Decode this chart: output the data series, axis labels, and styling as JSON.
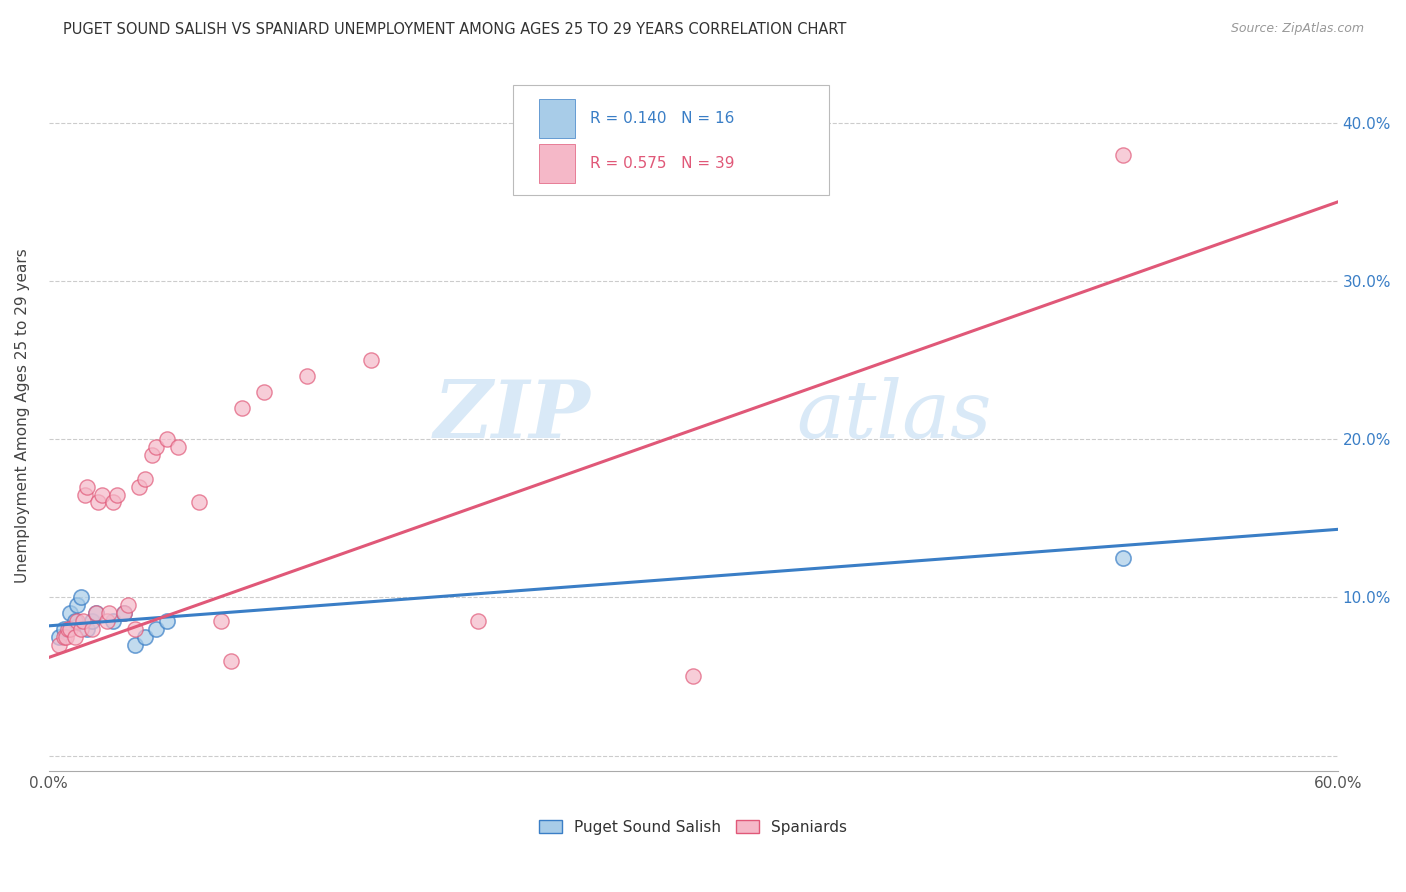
{
  "title": "PUGET SOUND SALISH VS SPANIARD UNEMPLOYMENT AMONG AGES 25 TO 29 YEARS CORRELATION CHART",
  "source": "Source: ZipAtlas.com",
  "ylabel": "Unemployment Among Ages 25 to 29 years",
  "xlim": [
    0.0,
    0.6
  ],
  "ylim": [
    -0.01,
    0.44
  ],
  "xticks": [
    0.0,
    0.1,
    0.2,
    0.3,
    0.4,
    0.5,
    0.6
  ],
  "xticklabels": [
    "0.0%",
    "",
    "",
    "",
    "",
    "",
    "60.0%"
  ],
  "yticks": [
    0.0,
    0.1,
    0.2,
    0.3,
    0.4
  ],
  "yticklabels": [
    "",
    "10.0%",
    "20.0%",
    "30.0%",
    "40.0%"
  ],
  "blue_scatter_x": [
    0.005,
    0.007,
    0.01,
    0.012,
    0.013,
    0.015,
    0.018,
    0.02,
    0.022,
    0.03,
    0.035,
    0.04,
    0.045,
    0.05,
    0.055,
    0.5
  ],
  "blue_scatter_y": [
    0.075,
    0.08,
    0.09,
    0.085,
    0.095,
    0.1,
    0.08,
    0.085,
    0.09,
    0.085,
    0.09,
    0.07,
    0.075,
    0.08,
    0.085,
    0.125
  ],
  "pink_scatter_x": [
    0.005,
    0.007,
    0.008,
    0.009,
    0.01,
    0.012,
    0.013,
    0.015,
    0.016,
    0.017,
    0.018,
    0.02,
    0.022,
    0.023,
    0.025,
    0.027,
    0.028,
    0.03,
    0.032,
    0.035,
    0.037,
    0.04,
    0.042,
    0.045,
    0.048,
    0.05,
    0.055,
    0.06,
    0.07,
    0.08,
    0.085,
    0.09,
    0.1,
    0.12,
    0.15,
    0.2,
    0.27,
    0.5,
    0.3
  ],
  "pink_scatter_y": [
    0.07,
    0.075,
    0.075,
    0.08,
    0.08,
    0.075,
    0.085,
    0.08,
    0.085,
    0.165,
    0.17,
    0.08,
    0.09,
    0.16,
    0.165,
    0.085,
    0.09,
    0.16,
    0.165,
    0.09,
    0.095,
    0.08,
    0.17,
    0.175,
    0.19,
    0.195,
    0.2,
    0.195,
    0.16,
    0.085,
    0.06,
    0.22,
    0.23,
    0.24,
    0.25,
    0.085,
    0.39,
    0.38,
    0.05
  ],
  "blue_line_x": [
    0.0,
    0.6
  ],
  "blue_line_y_start": 0.082,
  "blue_line_y_end": 0.143,
  "pink_line_x": [
    0.0,
    0.6
  ],
  "pink_line_y_start": 0.062,
  "pink_line_y_end": 0.35,
  "blue_scatter_color": "#a8cce8",
  "blue_line_color": "#3a7ec6",
  "pink_scatter_color": "#f5b8c8",
  "pink_line_color": "#e05878",
  "R_blue": "0.140",
  "N_blue": "16",
  "R_pink": "0.575",
  "N_pink": "39",
  "legend_label_blue": "Puget Sound Salish",
  "legend_label_pink": "Spaniards",
  "watermark_zip": "ZIP",
  "watermark_atlas": "atlas",
  "background_color": "#ffffff",
  "grid_color": "#cccccc"
}
